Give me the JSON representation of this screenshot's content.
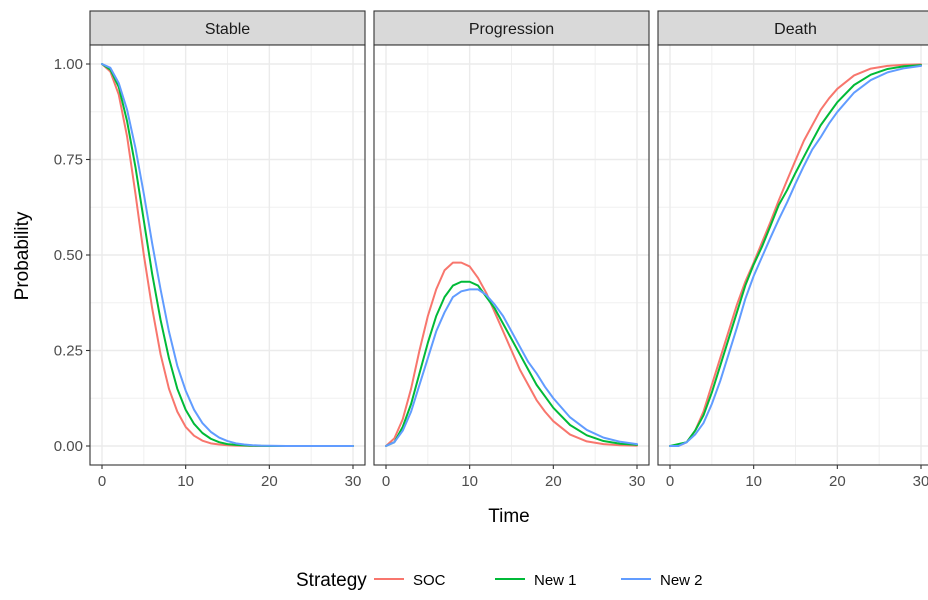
{
  "chart_data": {
    "type": "line",
    "facets": [
      "Stable",
      "Progression",
      "Death"
    ],
    "xlabel": "Time",
    "ylabel": "Probability",
    "xlim": [
      0,
      30
    ],
    "ylim": [
      0,
      1
    ],
    "x_ticks": [
      0,
      10,
      20,
      30
    ],
    "y_ticks": [
      0,
      0.25,
      0.5,
      0.75,
      1
    ],
    "y_tick_labels": [
      "0.00",
      "0.25",
      "0.50",
      "0.75",
      "1.00"
    ],
    "grid": true,
    "legend": {
      "title": "Strategy",
      "placement": "bottom",
      "entries": [
        {
          "name": "SOC",
          "color": "#F8766D"
        },
        {
          "name": "New 1",
          "color": "#00BA38"
        },
        {
          "name": "New 2",
          "color": "#619CFF"
        }
      ]
    },
    "x": [
      0,
      1,
      2,
      3,
      4,
      5,
      6,
      7,
      8,
      9,
      10,
      11,
      12,
      13,
      14,
      15,
      16,
      17,
      18,
      19,
      20,
      22,
      24,
      26,
      28,
      30
    ],
    "series": [
      {
        "name": "SOC",
        "facet_values": {
          "Stable": [
            1.0,
            0.98,
            0.92,
            0.81,
            0.66,
            0.5,
            0.36,
            0.24,
            0.15,
            0.09,
            0.05,
            0.027,
            0.014,
            0.007,
            0.004,
            0.002,
            0.001,
            0.0005,
            0.0002,
            0.0001,
            0,
            0,
            0,
            0,
            0,
            0
          ],
          "Progression": [
            0.0,
            0.02,
            0.07,
            0.15,
            0.25,
            0.34,
            0.41,
            0.46,
            0.48,
            0.48,
            0.47,
            0.44,
            0.4,
            0.35,
            0.3,
            0.25,
            0.2,
            0.16,
            0.12,
            0.09,
            0.065,
            0.03,
            0.012,
            0.005,
            0.002,
            0.001
          ],
          "Death": [
            0.0,
            0.0,
            0.01,
            0.04,
            0.09,
            0.16,
            0.23,
            0.3,
            0.37,
            0.43,
            0.48,
            0.533,
            0.586,
            0.643,
            0.696,
            0.748,
            0.799,
            0.8395,
            0.8798,
            0.9099,
            0.935,
            0.97,
            0.988,
            0.995,
            0.998,
            0.999
          ]
        }
      },
      {
        "name": "New 1",
        "facet_values": {
          "Stable": [
            1.0,
            0.985,
            0.94,
            0.85,
            0.73,
            0.59,
            0.45,
            0.33,
            0.23,
            0.15,
            0.095,
            0.058,
            0.034,
            0.019,
            0.01,
            0.005,
            0.003,
            0.0015,
            0.0007,
            0.0003,
            0,
            0,
            0,
            0,
            0,
            0
          ],
          "Progression": [
            0.0,
            0.01,
            0.05,
            0.11,
            0.19,
            0.27,
            0.34,
            0.39,
            0.42,
            0.43,
            0.43,
            0.42,
            0.39,
            0.36,
            0.32,
            0.28,
            0.24,
            0.2,
            0.16,
            0.13,
            0.1,
            0.055,
            0.028,
            0.013,
            0.006,
            0.003
          ],
          "Death": [
            0.0,
            0.005,
            0.01,
            0.04,
            0.08,
            0.14,
            0.21,
            0.28,
            0.35,
            0.42,
            0.475,
            0.522,
            0.576,
            0.631,
            0.67,
            0.715,
            0.757,
            0.7985,
            0.8393,
            0.8697,
            0.9,
            0.945,
            0.972,
            0.987,
            0.994,
            0.997
          ]
        }
      },
      {
        "name": "New 2",
        "facet_values": {
          "Stable": [
            1.0,
            0.99,
            0.95,
            0.88,
            0.78,
            0.66,
            0.53,
            0.41,
            0.3,
            0.21,
            0.145,
            0.095,
            0.06,
            0.037,
            0.022,
            0.013,
            0.007,
            0.004,
            0.002,
            0.001,
            0.0005,
            0,
            0,
            0,
            0,
            0
          ],
          "Progression": [
            0.0,
            0.01,
            0.04,
            0.09,
            0.16,
            0.23,
            0.3,
            0.35,
            0.39,
            0.405,
            0.41,
            0.41,
            0.395,
            0.37,
            0.34,
            0.3,
            0.26,
            0.22,
            0.19,
            0.155,
            0.125,
            0.075,
            0.042,
            0.022,
            0.011,
            0.005
          ],
          "Death": [
            0.0,
            0.0,
            0.01,
            0.03,
            0.06,
            0.11,
            0.17,
            0.24,
            0.31,
            0.385,
            0.445,
            0.495,
            0.545,
            0.593,
            0.638,
            0.687,
            0.733,
            0.776,
            0.808,
            0.844,
            0.8745,
            0.925,
            0.958,
            0.978,
            0.989,
            0.995
          ]
        }
      }
    ]
  }
}
